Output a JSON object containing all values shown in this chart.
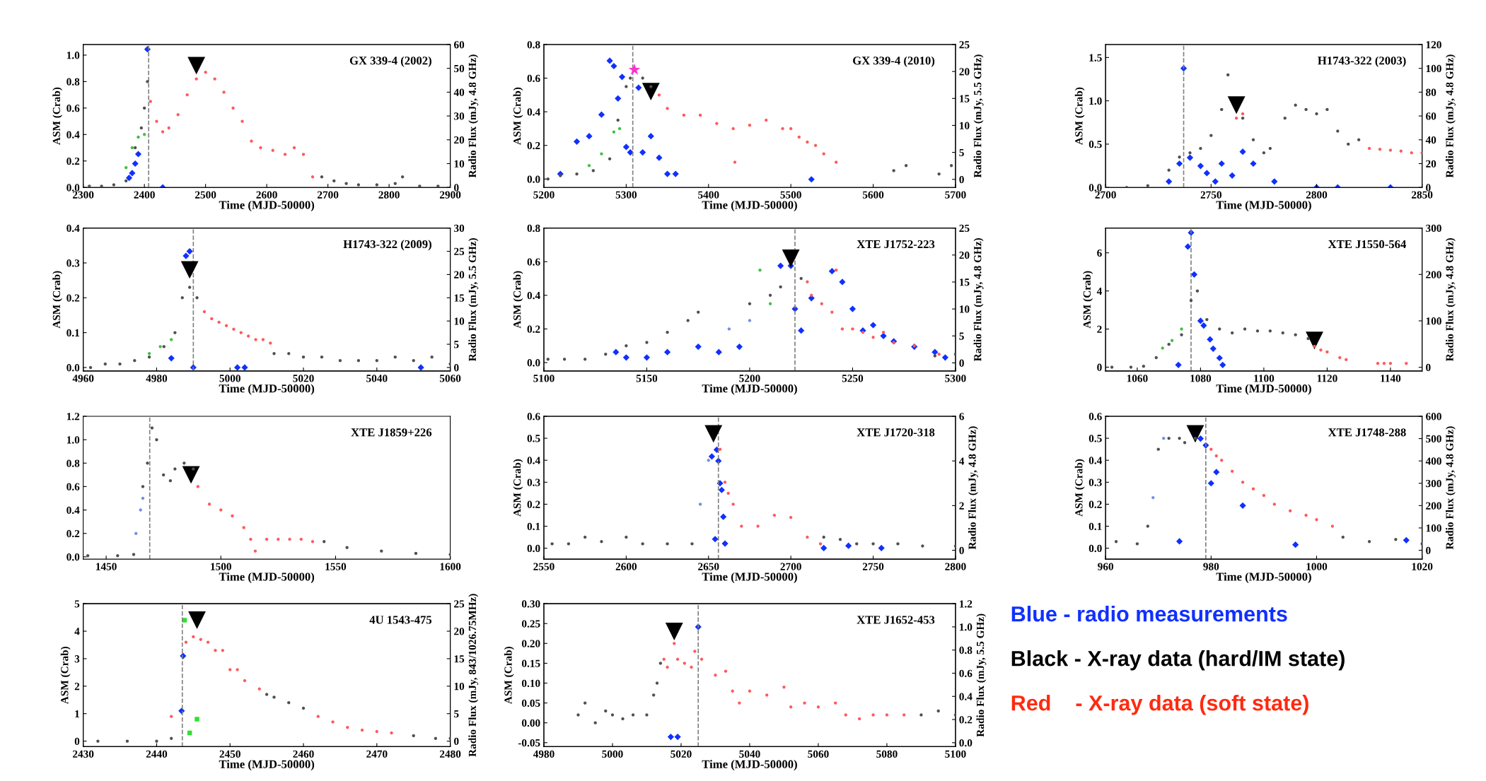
{
  "chart_data": [
    {
      "type": "scatter",
      "title": "GX 339-4 (2002)",
      "xlabel": "Time (MJD-50000)",
      "ylabel": "ASM (Crab)",
      "y2label": "Radio Flux (mJy, 4.8 GHz)",
      "xlim": [
        2300,
        2900
      ],
      "xticks": [
        2300,
        2400,
        2500,
        2600,
        2700,
        2800,
        2900
      ],
      "ylim": [
        0,
        1.08
      ],
      "yticks": [
        {
          "value": 0,
          "label": "0.0"
        },
        0.2,
        0.4,
        0.6,
        0.8,
        {
          "value": 1,
          "label": "1.0"
        }
      ],
      "y2lim": [
        0,
        60
      ],
      "y2ticks": [
        0,
        10,
        20,
        30,
        40,
        50,
        60
      ],
      "ref_lines": [
        {
          "axis": "x",
          "value": 2407,
          "color": "#808080",
          "line_style": "dashed"
        }
      ],
      "series": [
        {
          "color": "#505050",
          "marker": "circle",
          "x": [
            2310,
            2330,
            2350,
            2370,
            2385,
            2395,
            2400,
            2405,
            2690,
            2710,
            2730,
            2750,
            2780,
            2810,
            2822,
            2850,
            2880,
            2900
          ],
          "values": [
            0.01,
            0.01,
            0.02,
            0.05,
            0.3,
            0.45,
            0.6,
            0.8,
            0.08,
            0.05,
            0.03,
            0.02,
            0.02,
            0.03,
            0.08,
            0.01,
            0.01,
            0.0
          ]
        },
        {
          "color": "#40c040",
          "marker": "circle",
          "x": [
            2370,
            2380,
            2390,
            2400
          ],
          "values": [
            0.15,
            0.3,
            0.38,
            0.4
          ]
        },
        {
          "color": "#ff5a5a",
          "marker": "circle",
          "x": [
            2410,
            2420,
            2430,
            2440,
            2455,
            2470,
            2485,
            2500,
            2515,
            2530,
            2545,
            2560,
            2575,
            2590,
            2610,
            2630,
            2645,
            2660,
            2675
          ],
          "values": [
            0.65,
            0.5,
            0.42,
            0.45,
            0.55,
            0.7,
            0.82,
            0.87,
            0.82,
            0.72,
            0.6,
            0.5,
            0.35,
            0.3,
            0.28,
            0.25,
            0.3,
            0.25,
            0.08
          ]
        },
        {
          "color": "#1030ff",
          "marker": "diamond",
          "axis": "y2",
          "x": [
            2375,
            2380,
            2385,
            2390,
            2405,
            2430
          ],
          "values": [
            4,
            6,
            10,
            14,
            58,
            0
          ]
        },
        {
          "color": "#000000",
          "marker": "triangle",
          "x": [
            2485
          ],
          "values": [
            0.92
          ]
        }
      ]
    },
    {
      "type": "scatter",
      "title": "GX 339-4 (2010)",
      "xlabel": "Time (MJD-50000)",
      "ylabel": "ASM (Crab)",
      "y2label": "Radio Flux (mJy, 5.5 GHz)",
      "xlim": [
        5200,
        5700
      ],
      "xticks": [
        5200,
        5300,
        5400,
        5500,
        5600,
        5700
      ],
      "ylim": [
        -0.05,
        0.8
      ],
      "yticks": [
        {
          "value": 0,
          "label": "0.0"
        },
        0.2,
        0.4,
        0.6,
        0.8
      ],
      "y2lim": [
        -1.5,
        25
      ],
      "y2ticks": [
        0,
        5,
        10,
        15,
        20,
        25
      ],
      "ref_lines": [
        {
          "axis": "x",
          "value": 5308,
          "color": "#808080",
          "line_style": "dashed"
        }
      ],
      "series": [
        {
          "color": "#505050",
          "marker": "circle",
          "x": [
            5205,
            5220,
            5240,
            5260,
            5280,
            5290,
            5300,
            5305,
            5320,
            5330,
            5625,
            5640,
            5680,
            5695
          ],
          "values": [
            0.0,
            0.02,
            0.03,
            0.05,
            0.12,
            0.35,
            0.55,
            0.6,
            0.6,
            0.55,
            0.05,
            0.08,
            0.03,
            0.08
          ]
        },
        {
          "color": "#40c040",
          "marker": "circle",
          "x": [
            5255,
            5270,
            5285,
            5292
          ],
          "values": [
            0.08,
            0.15,
            0.28,
            0.3
          ]
        },
        {
          "color": "#ff5a5a",
          "marker": "circle",
          "x": [
            5340,
            5350,
            5370,
            5390,
            5410,
            5430,
            5450,
            5470,
            5490,
            5500,
            5510,
            5520,
            5530,
            5540,
            5555,
            5432
          ],
          "values": [
            0.5,
            0.42,
            0.38,
            0.38,
            0.33,
            0.3,
            0.32,
            0.35,
            0.3,
            0.3,
            0.25,
            0.22,
            0.2,
            0.15,
            0.1,
            0.1
          ]
        },
        {
          "color": "#1030ff",
          "marker": "diamond",
          "axis": "y2",
          "x": [
            5220,
            5240,
            5255,
            5270,
            5280,
            5285,
            5290,
            5295,
            5300,
            5305,
            5315,
            5320,
            5330,
            5340,
            5350,
            5360,
            5525
          ],
          "values": [
            1,
            7,
            8,
            12,
            22,
            21,
            15,
            19,
            6,
            5,
            17,
            5,
            8,
            4,
            1,
            1,
            0
          ]
        },
        {
          "color": "#ff30d0",
          "marker": "star",
          "x": [
            5310
          ],
          "values": [
            0.65
          ]
        },
        {
          "color": "#000000",
          "marker": "triangle",
          "x": [
            5330
          ],
          "values": [
            0.52
          ]
        }
      ]
    },
    {
      "type": "scatter",
      "title": "H1743-322 (2003)",
      "xlabel": "Time (MJD-50000)",
      "ylabel": "ASM (Crab)",
      "y2label": "Radio Flux (mJy, 4.8 GHz)",
      "xlim": [
        2700,
        2850
      ],
      "xticks": [
        2700,
        2750,
        2800,
        2850
      ],
      "ylim": [
        0,
        1.65
      ],
      "yticks": [
        {
          "value": 0,
          "label": "0.0"
        },
        0.5,
        {
          "value": 1,
          "label": "1.0"
        },
        1.5
      ],
      "y2lim": [
        0,
        120
      ],
      "y2ticks": [
        0,
        20,
        40,
        60,
        80,
        100,
        120
      ],
      "ref_lines": [
        {
          "axis": "x",
          "value": 2737,
          "color": "#808080",
          "line_style": "dashed"
        }
      ],
      "series": [
        {
          "color": "#505050",
          "marker": "circle",
          "x": [
            2700,
            2710,
            2720,
            2730,
            2735,
            2740,
            2745,
            2750,
            2755,
            2758,
            2765,
            2770,
            2775,
            2778,
            2785,
            2790,
            2795,
            2800,
            2805,
            2810,
            2815,
            2820
          ],
          "values": [
            0.0,
            0.0,
            0.02,
            0.2,
            0.35,
            0.4,
            0.45,
            0.6,
            0.9,
            1.3,
            0.8,
            0.55,
            0.4,
            0.45,
            0.8,
            0.95,
            0.9,
            0.85,
            0.9,
            0.65,
            0.5,
            0.55
          ]
        },
        {
          "color": "#ff5a5a",
          "marker": "circle",
          "x": [
            2762,
            2765,
            2825,
            2830,
            2835,
            2840,
            2845,
            2850
          ],
          "values": [
            0.8,
            0.85,
            0.45,
            0.44,
            0.43,
            0.42,
            0.4,
            0.4
          ]
        },
        {
          "color": "#1030ff",
          "marker": "diamond",
          "axis": "y2",
          "x": [
            2730,
            2735,
            2737,
            2740,
            2745,
            2748,
            2752,
            2755,
            2760,
            2765,
            2770,
            2780,
            2800,
            2810,
            2835
          ],
          "values": [
            5,
            20,
            100,
            25,
            18,
            12,
            5,
            20,
            10,
            30,
            20,
            5,
            0,
            0,
            0
          ]
        },
        {
          "color": "#000000",
          "marker": "triangle",
          "x": [
            2762
          ],
          "values": [
            0.95
          ]
        }
      ]
    },
    {
      "type": "scatter",
      "title": "H1743-322 (2009)",
      "xlabel": "Time (MJD-50000)",
      "ylabel": "ASM (Crab)",
      "y2label": "Radio Flux (mJy, 5.5 GHz)",
      "xlim": [
        4960,
        5060
      ],
      "xticks": [
        4960,
        4980,
        5000,
        5020,
        5040,
        5060
      ],
      "ylim": [
        -0.01,
        0.4
      ],
      "yticks": [
        {
          "value": 0,
          "label": "0.0"
        },
        0.1,
        0.2,
        0.3,
        0.4
      ],
      "y2lim": [
        -0.75,
        30
      ],
      "y2ticks": [
        0,
        5,
        10,
        15,
        20,
        25,
        30
      ],
      "ref_lines": [
        {
          "axis": "x",
          "value": 4990,
          "color": "#808080",
          "line_style": "dashed"
        }
      ],
      "series": [
        {
          "color": "#505050",
          "marker": "circle",
          "x": [
            4962,
            4966,
            4970,
            4974,
            4978,
            4982,
            4985,
            4987,
            4989,
            4991,
            5012,
            5016,
            5020,
            5025,
            5030,
            5035,
            5040,
            5045,
            5050,
            5055,
            5060
          ],
          "values": [
            0.0,
            0.01,
            0.01,
            0.02,
            0.03,
            0.06,
            0.1,
            0.2,
            0.23,
            0.2,
            0.04,
            0.04,
            0.03,
            0.03,
            0.02,
            0.02,
            0.02,
            0.03,
            0.02,
            0.03,
            0.01
          ]
        },
        {
          "color": "#40c040",
          "marker": "circle",
          "x": [
            4978,
            4981,
            4984
          ],
          "values": [
            0.04,
            0.06,
            0.08
          ]
        },
        {
          "color": "#ff5a5a",
          "marker": "circle",
          "x": [
            4993,
            4995,
            4997,
            4999,
            5001,
            5003,
            5005,
            5007,
            5009,
            5011
          ],
          "values": [
            0.16,
            0.14,
            0.13,
            0.12,
            0.11,
            0.1,
            0.09,
            0.08,
            0.08,
            0.07
          ]
        },
        {
          "color": "#1030ff",
          "marker": "diamond",
          "axis": "y2",
          "x": [
            4984,
            4988,
            4989,
            4990,
            5002,
            5004,
            5052
          ],
          "values": [
            2,
            24,
            25,
            0,
            0,
            0,
            0
          ]
        },
        {
          "color": "#000000",
          "marker": "triangle",
          "x": [
            4989
          ],
          "values": [
            0.28
          ]
        }
      ]
    },
    {
      "type": "scatter",
      "title": "XTE J1752-223",
      "xlabel": "Time (MJD-50000)",
      "ylabel": "ASM (Crab)",
      "y2label": "Radio Flux (mJy, 4.8 GHz)",
      "xlim": [
        5100,
        5300
      ],
      "xticks": [
        5100,
        5150,
        5200,
        5250,
        5300
      ],
      "ylim": [
        -0.05,
        0.8
      ],
      "yticks": [
        {
          "value": 0,
          "label": "0.0"
        },
        0.2,
        0.4,
        0.6,
        0.8
      ],
      "y2lim": [
        -1.5,
        25
      ],
      "y2ticks": [
        0,
        5,
        10,
        15,
        20,
        25
      ],
      "ref_lines": [
        {
          "axis": "x",
          "value": 5222,
          "color": "#808080",
          "line_style": "dashed"
        }
      ],
      "series": [
        {
          "color": "#505050",
          "marker": "circle",
          "x": [
            5102,
            5110,
            5120,
            5130,
            5140,
            5150,
            5160,
            5170,
            5175,
            5200,
            5210,
            5215,
            5225,
            5290,
            5300
          ],
          "values": [
            0.02,
            0.02,
            0.02,
            0.05,
            0.1,
            0.12,
            0.18,
            0.25,
            0.3,
            0.35,
            0.4,
            0.45,
            0.5,
            0.04,
            0.05
          ]
        },
        {
          "color": "#40c040",
          "marker": "circle",
          "x": [
            5205,
            5210
          ],
          "values": [
            0.55,
            0.35
          ]
        },
        {
          "color": "#7090e0",
          "marker": "circle",
          "x": [
            5190,
            5200
          ],
          "values": [
            0.2,
            0.25
          ]
        },
        {
          "color": "#ff5a5a",
          "marker": "circle",
          "x": [
            5228,
            5230,
            5235,
            5240,
            5245,
            5250,
            5255,
            5260,
            5265,
            5270,
            5280,
            5292,
            5242
          ],
          "values": [
            0.48,
            0.4,
            0.35,
            0.3,
            0.2,
            0.2,
            0.18,
            0.15,
            0.18,
            0.12,
            0.1,
            0.05,
            0.55
          ]
        },
        {
          "color": "#1030ff",
          "marker": "diamond",
          "axis": "y2",
          "x": [
            5135,
            5140,
            5150,
            5160,
            5175,
            5185,
            5195,
            5215,
            5220,
            5222,
            5225,
            5230,
            5240,
            5245,
            5250,
            5255,
            5260,
            5265,
            5270,
            5280,
            5290,
            5295
          ],
          "values": [
            2,
            1,
            1,
            2,
            3,
            2,
            3,
            18,
            18,
            10,
            6,
            12,
            17,
            15,
            10,
            6,
            7,
            5,
            4,
            3,
            2,
            1
          ]
        },
        {
          "color": "#000000",
          "marker": "triangle",
          "x": [
            5220
          ],
          "values": [
            0.62
          ]
        }
      ]
    },
    {
      "type": "scatter",
      "title": "XTE J1550-564",
      "xlabel": "Time (MJD-50000)",
      "ylabel": "ASM (Crab)",
      "y2label": "Radio Flux (mJy, 4.8 GHz)",
      "xlim": [
        1050,
        1150
      ],
      "xticks": [
        1060,
        1080,
        1100,
        1120,
        1140
      ],
      "ylim": [
        -0.2,
        7.3
      ],
      "yticks": [
        0,
        2,
        4,
        6
      ],
      "y2lim": [
        -8,
        300
      ],
      "y2ticks": [
        0,
        100,
        200,
        300
      ],
      "ref_lines": [
        {
          "axis": "x",
          "value": 1077,
          "color": "#808080",
          "line_style": "dashed"
        }
      ],
      "series": [
        {
          "color": "#505050",
          "marker": "circle",
          "x": [
            1052,
            1058,
            1062,
            1066,
            1070,
            1074,
            1077,
            1079,
            1082,
            1086,
            1090,
            1094,
            1098,
            1102,
            1106,
            1110,
            1114
          ],
          "values": [
            0.0,
            0.0,
            0.05,
            0.5,
            1.2,
            1.7,
            3.5,
            4,
            2.5,
            2,
            1.8,
            2,
            1.9,
            1.9,
            1.8,
            1.7,
            1.5
          ]
        },
        {
          "color": "#40c040",
          "marker": "circle",
          "x": [
            1068,
            1071,
            1074
          ],
          "values": [
            1.0,
            1.4,
            2.0
          ]
        },
        {
          "color": "#ff5a5a",
          "marker": "circle",
          "x": [
            1116,
            1118,
            1120,
            1124,
            1126,
            1136,
            1138,
            1140,
            1145
          ],
          "values": [
            1.1,
            0.9,
            0.8,
            0.5,
            0.4,
            0.2,
            0.2,
            0.2,
            0.2
          ]
        },
        {
          "color": "#1030ff",
          "marker": "diamond",
          "axis": "y2",
          "x": [
            1073,
            1076,
            1077,
            1078,
            1080,
            1081,
            1083,
            1084,
            1086,
            1087
          ],
          "values": [
            5,
            260,
            290,
            200,
            100,
            90,
            60,
            40,
            20,
            5
          ]
        },
        {
          "color": "#000000",
          "marker": "triangle",
          "x": [
            1116
          ],
          "values": [
            1.4
          ]
        }
      ]
    },
    {
      "type": "scatter",
      "title": "XTE J1859+226",
      "xlabel": "Time (MJD-50000)",
      "xlim": [
        1440,
        1600
      ],
      "xticks": [
        1450,
        1500,
        1550,
        1600
      ],
      "ylim": [
        -0.02,
        1.2
      ],
      "yticks": [
        {
          "value": 0,
          "label": "0.0"
        },
        0.2,
        0.4,
        0.6,
        0.8,
        {
          "value": 1,
          "label": "1.0"
        },
        1.2
      ],
      "ref_lines": [
        {
          "axis": "x",
          "value": 1469,
          "color": "#808080",
          "line_style": "dashed"
        }
      ],
      "series": [
        {
          "color": "#505050",
          "marker": "circle",
          "x": [
            1442,
            1455,
            1462,
            1466,
            1468,
            1470,
            1472,
            1475,
            1478,
            1480,
            1484,
            1488,
            1545,
            1555,
            1570,
            1585,
            1600
          ],
          "values": [
            0.01,
            0.01,
            0.02,
            0.6,
            0.8,
            1.1,
            1.0,
            0.7,
            0.65,
            0.75,
            0.8,
            0.75,
            0.13,
            0.08,
            0.05,
            0.03,
            0.02
          ]
        },
        {
          "color": "#7090e0",
          "marker": "circle",
          "x": [
            1463,
            1465,
            1466
          ],
          "values": [
            0.2,
            0.4,
            0.5
          ]
        },
        {
          "color": "#ff5a5a",
          "marker": "circle",
          "x": [
            1490,
            1495,
            1500,
            1505,
            1510,
            1513,
            1515,
            1520,
            1525,
            1530,
            1535,
            1540
          ],
          "values": [
            0.6,
            0.45,
            0.4,
            0.35,
            0.25,
            0.15,
            0.05,
            0.15,
            0.15,
            0.15,
            0.15,
            0.13
          ]
        },
        {
          "color": "#000000",
          "marker": "triangle",
          "x": [
            1487
          ],
          "values": [
            0.7
          ]
        }
      ]
    },
    {
      "type": "scatter",
      "title": "XTE J1720-318",
      "xlabel": "Time (MJD-50000)",
      "ylabel": "ASM (Crab)",
      "y2label": "Radio Flux (mJy, 4.8 GHz)",
      "xlim": [
        2550,
        2800
      ],
      "xticks": [
        2550,
        2600,
        2650,
        2700,
        2750,
        2800
      ],
      "ylim": [
        -0.05,
        0.6
      ],
      "yticks": [
        {
          "value": 0,
          "label": "0.0"
        },
        0.1,
        0.2,
        0.3,
        0.4,
        0.5,
        0.6
      ],
      "y2lim": [
        -0.4,
        6
      ],
      "y2ticks": [
        0,
        2,
        4,
        6
      ],
      "ref_lines": [
        {
          "axis": "x",
          "value": 2656,
          "color": "#808080",
          "line_style": "dashed"
        }
      ],
      "series": [
        {
          "color": "#505050",
          "marker": "circle",
          "x": [
            2555,
            2565,
            2575,
            2585,
            2600,
            2610,
            2625,
            2640,
            2720,
            2730,
            2740,
            2750,
            2765,
            2780,
            2800
          ],
          "values": [
            0.02,
            0.02,
            0.05,
            0.03,
            0.05,
            0.02,
            0.02,
            0.02,
            0.05,
            0.04,
            0.02,
            0.02,
            0.02,
            0.01,
            0.01
          ]
        },
        {
          "color": "#7090e0",
          "marker": "circle",
          "x": [
            2645,
            2650
          ],
          "values": [
            0.2,
            0.4
          ]
        },
        {
          "color": "#ff5a5a",
          "marker": "circle",
          "x": [
            2657,
            2660,
            2662,
            2665,
            2670,
            2680,
            2690,
            2700,
            2710,
            2718
          ],
          "values": [
            0.45,
            0.3,
            0.25,
            0.2,
            0.1,
            0.1,
            0.15,
            0.14,
            0.05,
            0.02
          ]
        },
        {
          "color": "#1030ff",
          "marker": "diamond",
          "axis": "y2",
          "x": [
            2652,
            2655,
            2656,
            2657,
            2658,
            2659,
            2654,
            2660,
            2720,
            2735,
            2755
          ],
          "values": [
            4.2,
            4.5,
            4,
            3,
            2.7,
            1.5,
            0.5,
            0.3,
            0.1,
            0.2,
            0.1
          ]
        },
        {
          "color": "#000000",
          "marker": "triangle",
          "x": [
            2653
          ],
          "values": [
            0.52
          ]
        }
      ]
    },
    {
      "type": "scatter",
      "title": "XTE J1748-288",
      "xlabel": "Time (MJD-50000)",
      "ylabel": "ASM (Crab)",
      "y2label": "Radio Flux (mJy, 4.8 GHz)",
      "xlim": [
        960,
        1020
      ],
      "xticks": [
        960,
        980,
        1000,
        1020
      ],
      "ylim": [
        -0.05,
        0.6
      ],
      "yticks": [
        {
          "value": 0,
          "label": "0.0"
        },
        0.1,
        0.2,
        0.3,
        0.4,
        0.5,
        0.6
      ],
      "y2lim": [
        -40,
        600
      ],
      "y2ticks": [
        0,
        100,
        200,
        300,
        400,
        500,
        600
      ],
      "ref_lines": [
        {
          "axis": "x",
          "value": 979,
          "color": "#808080",
          "line_style": "dashed"
        }
      ],
      "series": [
        {
          "color": "#505050",
          "marker": "circle",
          "x": [
            962,
            966,
            968,
            970,
            972,
            974,
            975,
            977,
            1005,
            1010,
            1015,
            1020
          ],
          "values": [
            0.03,
            0.02,
            0.1,
            0.45,
            0.5,
            0.5,
            0.48,
            0.5,
            0.05,
            0.03,
            0.04,
            0.02
          ]
        },
        {
          "color": "#7090e0",
          "marker": "circle",
          "x": [
            969,
            971
          ],
          "values": [
            0.23,
            0.5
          ]
        },
        {
          "color": "#ff5a5a",
          "marker": "circle",
          "x": [
            980,
            981,
            982,
            984,
            986,
            988,
            990,
            992,
            995,
            998,
            1000,
            1003
          ],
          "values": [
            0.45,
            0.42,
            0.4,
            0.35,
            0.3,
            0.27,
            0.24,
            0.2,
            0.17,
            0.15,
            0.13,
            0.1
          ]
        },
        {
          "color": "#1030ff",
          "marker": "diamond",
          "axis": "y2",
          "x": [
            974,
            978,
            979,
            980,
            981,
            986,
            996,
            1017
          ],
          "values": [
            40,
            500,
            470,
            300,
            350,
            200,
            25,
            45
          ]
        },
        {
          "color": "#000000",
          "marker": "triangle",
          "x": [
            977
          ],
          "values": [
            0.52
          ]
        }
      ]
    },
    {
      "type": "scatter",
      "title": "4U 1543-475",
      "xlabel": "Time (MJD-50000)",
      "ylabel": "ASM (Crab)",
      "y2label": "Radio Flux (mJy, 843/1026.75MHz)",
      "xlim": [
        2430,
        2480
      ],
      "xticks": [
        2430,
        2440,
        2450,
        2460,
        2470,
        2480
      ],
      "ylim": [
        -0.2,
        5
      ],
      "yticks": [
        0,
        1,
        2,
        3,
        4,
        5
      ],
      "y2lim": [
        -1,
        25
      ],
      "y2ticks": [
        0,
        5,
        10,
        15,
        20,
        25
      ],
      "ref_lines": [
        {
          "axis": "x",
          "value": 2443.5,
          "color": "#808080",
          "line_style": "dashed"
        }
      ],
      "series": [
        {
          "color": "#505050",
          "marker": "circle",
          "x": [
            2432,
            2436,
            2440,
            2442,
            2455,
            2456,
            2458,
            2460,
            2475,
            2478,
            2480
          ],
          "values": [
            0.0,
            0.0,
            0.0,
            0.1,
            1.7,
            1.6,
            1.4,
            1.2,
            0.2,
            0.1,
            0.1
          ]
        },
        {
          "color": "#ff5a5a",
          "marker": "circle",
          "x": [
            2442,
            2444,
            2445,
            2446,
            2447,
            2448,
            2449,
            2450,
            2451,
            2452,
            2454,
            2462,
            2464,
            2466,
            2468,
            2470,
            2472
          ],
          "values": [
            0.9,
            3.6,
            3.8,
            3.7,
            3.6,
            3.3,
            3.3,
            2.6,
            2.6,
            2.2,
            1.9,
            0.9,
            0.7,
            0.5,
            0.4,
            0.35,
            0.3
          ]
        },
        {
          "color": "#30e030",
          "marker": "square",
          "axis": "y2",
          "x": [
            2443.8,
            2444.5,
            2445.5
          ],
          "values": [
            22,
            1.5,
            4
          ]
        },
        {
          "color": "#1030ff",
          "marker": "diamond",
          "axis": "y2",
          "x": [
            2443.4,
            2443.6
          ],
          "values": [
            5.5,
            15.5
          ]
        },
        {
          "color": "#000000",
          "marker": "triangle",
          "x": [
            2445.5
          ],
          "values": [
            4.4
          ]
        }
      ]
    },
    {
      "type": "scatter",
      "title": "XTE J1652-453",
      "xlabel": "Time (MJD-50000)",
      "ylabel": "ASM (Crab)",
      "y2label": "Radio Flux (mJy, 5.5 GHz)",
      "xlim": [
        4980,
        5100
      ],
      "xticks": [
        4980,
        5000,
        5020,
        5040,
        5060,
        5080,
        5100
      ],
      "ylim": [
        -0.06,
        0.3
      ],
      "yticks": [
        {
          "value": -0.05,
          "label": "-0.05"
        },
        {
          "value": 0,
          "label": "0.00"
        },
        {
          "value": 0.05,
          "label": "0.05"
        },
        {
          "value": 0.1,
          "label": "0.10"
        },
        {
          "value": 0.15,
          "label": "0.15"
        },
        {
          "value": 0.2,
          "label": "0.20"
        },
        {
          "value": 0.25,
          "label": "0.25"
        },
        {
          "value": 0.3,
          "label": "0.30"
        }
      ],
      "y2lim": [
        -0.034,
        1.2
      ],
      "y2ticks": [
        {
          "value": 0,
          "label": "0.0"
        },
        0.2,
        0.4,
        0.6,
        0.8,
        {
          "value": 1,
          "label": "1.0"
        },
        1.2
      ],
      "ref_lines": [
        {
          "axis": "x",
          "value": 5025,
          "color": "#808080",
          "line_style": "dashed"
        }
      ],
      "series": [
        {
          "color": "#505050",
          "marker": "circle",
          "x": [
            4990,
            4992,
            4995,
            4998,
            5000,
            5003,
            5006,
            5010,
            5012,
            5013,
            5014,
            5090,
            5095,
            5100
          ],
          "values": [
            0.02,
            0.05,
            0.0,
            0.03,
            0.02,
            0.01,
            0.02,
            0.02,
            0.07,
            0.1,
            0.15,
            0.02,
            0.03,
            0.02
          ]
        },
        {
          "color": "#ff5a5a",
          "marker": "circle",
          "x": [
            5015,
            5016,
            5018,
            5019,
            5021,
            5023,
            5024,
            5026,
            5030,
            5033,
            5035,
            5037,
            5040,
            5045,
            5050,
            5052,
            5056,
            5060,
            5065,
            5068,
            5072,
            5076,
            5080,
            5085
          ],
          "values": [
            0.16,
            0.14,
            0.2,
            0.16,
            0.15,
            0.14,
            0.18,
            0.16,
            0.12,
            0.13,
            0.08,
            0.05,
            0.08,
            0.07,
            0.09,
            0.04,
            0.05,
            0.04,
            0.05,
            0.02,
            0.01,
            0.02,
            0.02,
            0.02
          ]
        },
        {
          "color": "#1030ff",
          "marker": "diamond",
          "axis": "y2",
          "x": [
            5017,
            5019,
            5025
          ],
          "values": [
            0.05,
            0.05,
            1.0
          ]
        },
        {
          "color": "#000000",
          "marker": "triangle",
          "x": [
            5018
          ],
          "values": [
            0.23
          ]
        }
      ]
    },
    {
      "type": "other",
      "annotations": [
        "Blue - radio measurements",
        "Black - X-ray data (hard/IM state)",
        "Red    - X-ray data (soft state)"
      ],
      "colors": [
        "#1030ff",
        "#000000",
        "#ff2a10"
      ]
    }
  ]
}
